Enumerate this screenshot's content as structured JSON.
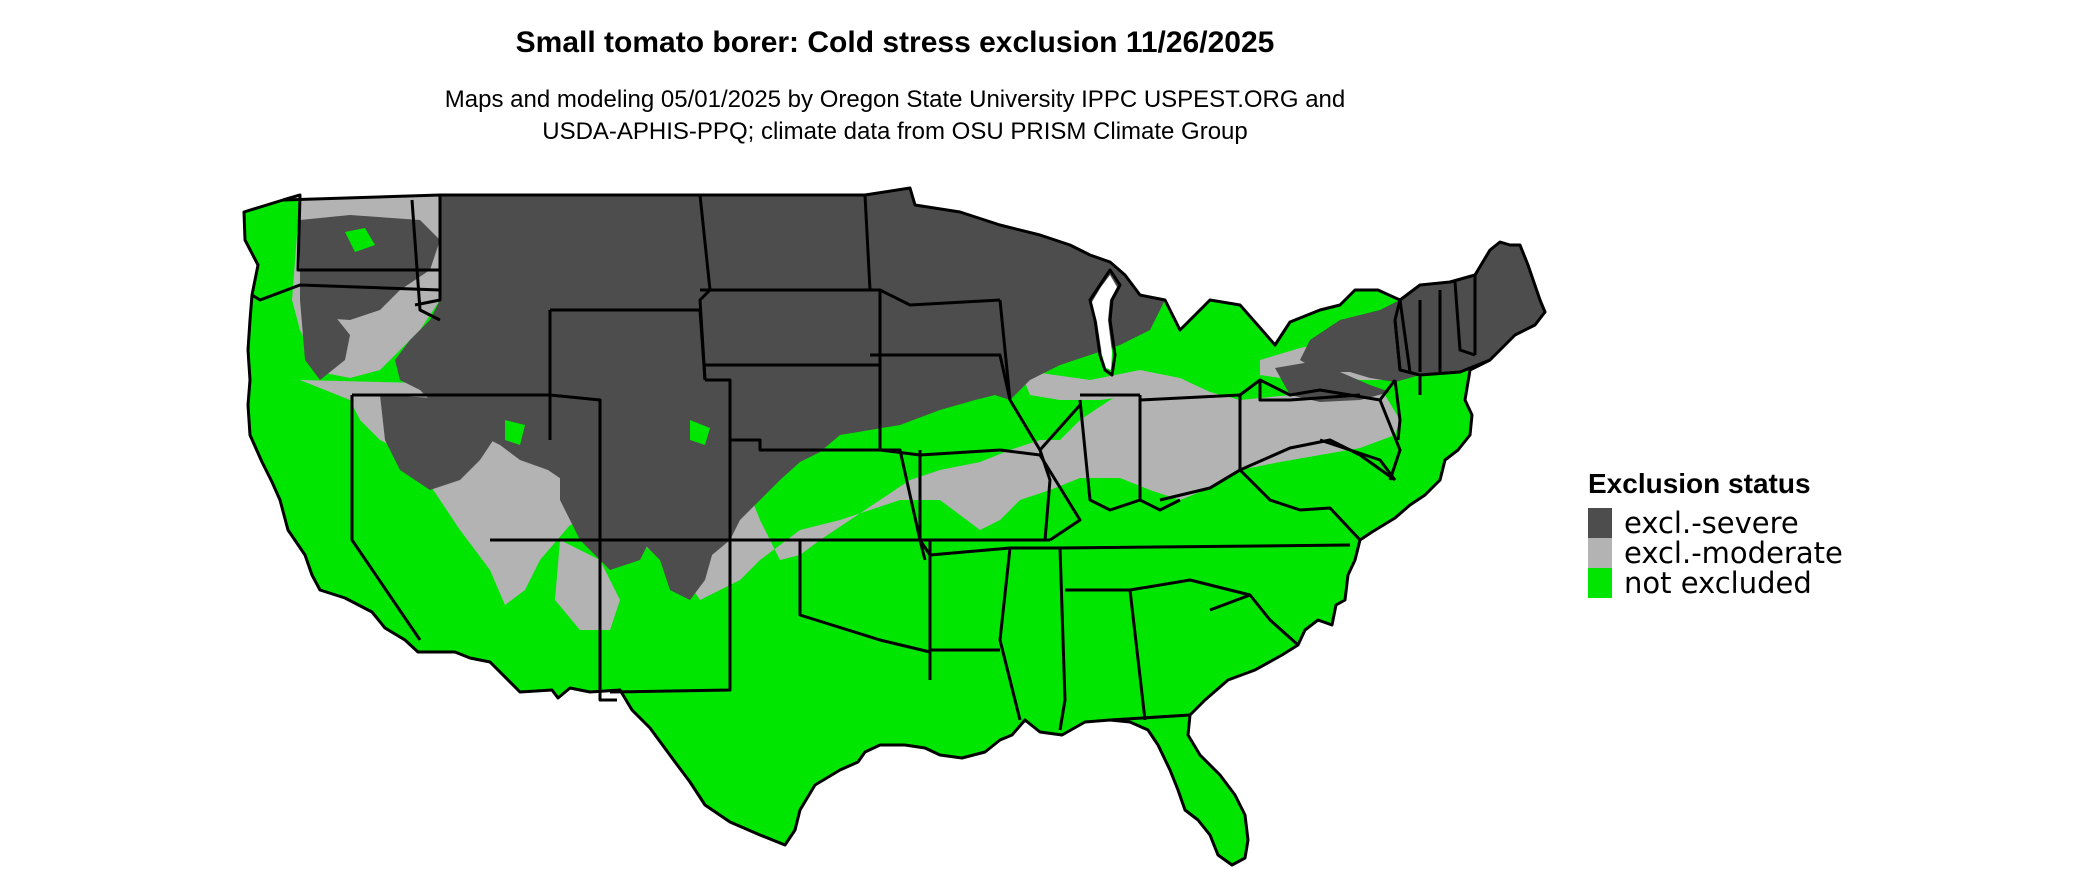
{
  "title": "Small tomato borer: Cold stress exclusion 11/26/2025",
  "subtitle_lines": [
    "Maps and modeling 05/01/2025 by Oregon State University IPPC USPEST.ORG and",
    "USDA-APHIS-PPQ; climate data from OSU PRISM Climate Group"
  ],
  "legend": {
    "title": "Exclusion status",
    "items": [
      {
        "label": "excl.-severe",
        "color": "#4d4d4d"
      },
      {
        "label": "excl.-moderate",
        "color": "#b3b3b3"
      },
      {
        "label": "not excluded",
        "color": "#00e600"
      }
    ]
  },
  "colors": {
    "severe": "#4d4d4d",
    "moderate": "#b3b3b3",
    "not_excluded": "#00e600",
    "border": "#000000"
  }
}
